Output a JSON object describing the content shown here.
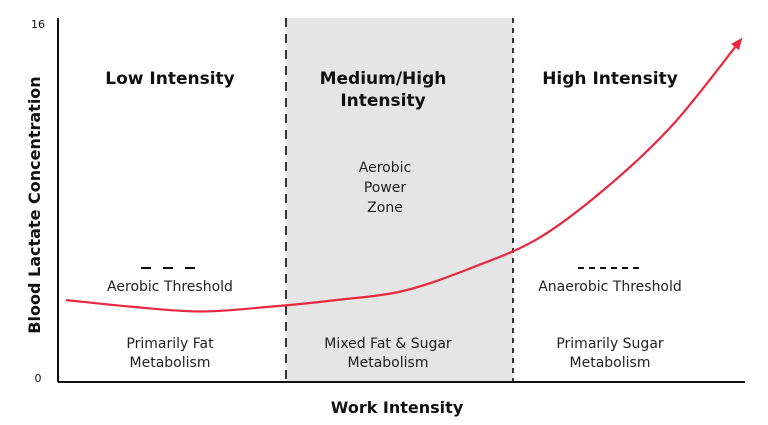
{
  "chart_data": {
    "type": "line",
    "xlabel": "Work Intensity",
    "ylabel": "Blood Lactate Concentration",
    "ylim": [
      0,
      16
    ],
    "y_ticks": [
      0,
      16
    ],
    "grid": false,
    "series": [
      {
        "values_note_free": true,
        "x": [
          0,
          10,
          20,
          30,
          40,
          50,
          60,
          70,
          80,
          90,
          100
        ],
        "y": [
          3.6,
          3.3,
          3.1,
          3.3,
          3.6,
          4.0,
          5.0,
          6.3,
          8.5,
          11.3,
          15.0
        ]
      }
    ],
    "zones": [
      {
        "title": [
          "Low Intensity"
        ],
        "description": [
          "Primarily Fat",
          "Metabolism"
        ]
      },
      {
        "title": [
          "Medium/High",
          "Intensity"
        ],
        "center_text": [
          "Aerobic",
          "Power",
          "Zone"
        ],
        "description": [
          "Mixed Fat & Sugar",
          "Metabolism"
        ]
      },
      {
        "title": [
          "High Intensity"
        ],
        "description": [
          "Primarily Sugar",
          "Metabolism"
        ]
      }
    ],
    "thresholds": [
      {
        "label": "Aerobic Threshold"
      },
      {
        "label": "Anaerobic Threshold"
      }
    ]
  },
  "colors": {
    "curve": "#e8283f",
    "shaded_zone": "#e5e5e5",
    "axis": "#111111",
    "text": "#222222"
  }
}
